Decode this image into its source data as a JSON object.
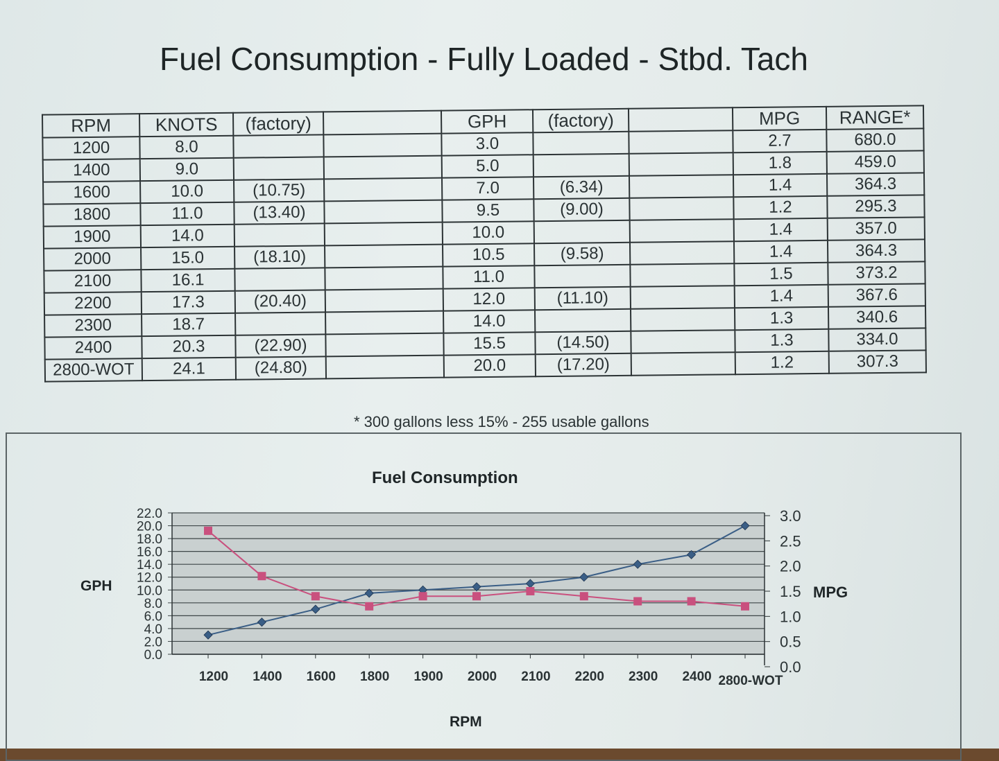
{
  "title": "Fuel Consumption - Fully Loaded - Stbd. Tach",
  "table": {
    "headers": [
      "RPM",
      "KNOTS",
      "(factory)",
      "",
      "GPH",
      "(factory)",
      "",
      "MPG",
      "RANGE*"
    ],
    "rows": [
      [
        "1200",
        "8.0",
        "",
        "",
        "3.0",
        "",
        "",
        "2.7",
        "680.0"
      ],
      [
        "1400",
        "9.0",
        "",
        "",
        "5.0",
        "",
        "",
        "1.8",
        "459.0"
      ],
      [
        "1600",
        "10.0",
        "(10.75)",
        "",
        "7.0",
        "(6.34)",
        "",
        "1.4",
        "364.3"
      ],
      [
        "1800",
        "11.0",
        "(13.40)",
        "",
        "9.5",
        "(9.00)",
        "",
        "1.2",
        "295.3"
      ],
      [
        "1900",
        "14.0",
        "",
        "",
        "10.0",
        "",
        "",
        "1.4",
        "357.0"
      ],
      [
        "2000",
        "15.0",
        "(18.10)",
        "",
        "10.5",
        "(9.58)",
        "",
        "1.4",
        "364.3"
      ],
      [
        "2100",
        "16.1",
        "",
        "",
        "11.0",
        "",
        "",
        "1.5",
        "373.2"
      ],
      [
        "2200",
        "17.3",
        "(20.40)",
        "",
        "12.0",
        "(11.10)",
        "",
        "1.4",
        "367.6"
      ],
      [
        "2300",
        "18.7",
        "",
        "",
        "14.0",
        "",
        "",
        "1.3",
        "340.6"
      ],
      [
        "2400",
        "20.3",
        "(22.90)",
        "",
        "15.5",
        "(14.50)",
        "",
        "1.3",
        "334.0"
      ],
      [
        "2800-WOT",
        "24.1",
        "(24.80)",
        "",
        "20.0",
        "(17.20)",
        "",
        "1.2",
        "307.3"
      ]
    ]
  },
  "footnote": "* 300 gallons less 15% - 255 usable gallons",
  "chart_data": {
    "type": "line",
    "title": "Fuel Consumption",
    "xlabel": "RPM",
    "ylabel": "GPH",
    "y2label": "MPG",
    "categories": [
      "1200",
      "1400",
      "1600",
      "1800",
      "1900",
      "2000",
      "2100",
      "2200",
      "2300",
      "2400",
      "2800-WOT"
    ],
    "ylim": [
      0,
      22
    ],
    "y_ticks": [
      "0.0",
      "2.0",
      "4.0",
      "6.0",
      "8.0",
      "10.0",
      "12.0",
      "14.0",
      "16.0",
      "18.0",
      "20.0",
      "22.0"
    ],
    "y2lim": [
      0,
      3
    ],
    "y2_ticks": [
      "0.0",
      "0.5",
      "1.0",
      "1.5",
      "2.0",
      "2.5",
      "3.0"
    ],
    "series": [
      {
        "axis": "left",
        "color": "#3a5e86",
        "marker": "diamond",
        "values": [
          3.0,
          5.0,
          7.0,
          9.5,
          10.0,
          10.5,
          11.0,
          12.0,
          14.0,
          15.5,
          20.0
        ]
      },
      {
        "axis": "right",
        "color": "#c9507e",
        "marker": "square",
        "values": [
          2.7,
          1.8,
          1.4,
          1.2,
          1.4,
          1.4,
          1.5,
          1.4,
          1.3,
          1.3,
          1.2
        ]
      }
    ],
    "grid": true,
    "legend": "none"
  }
}
